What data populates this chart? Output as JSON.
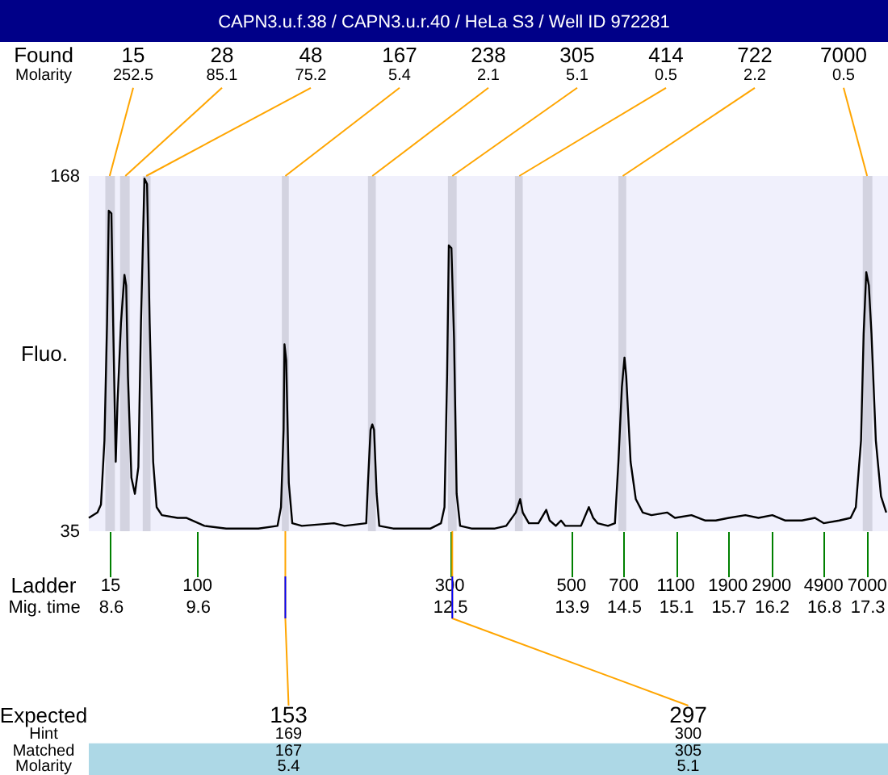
{
  "chart_data": {
    "type": "line",
    "title": "CAPN3.u.f.38 / CAPN3.u.r.40 / HeLa S3 / Well ID 972281",
    "xlabel": "Mig. time",
    "ylabel": "Fluo.",
    "xlim": [
      8.35,
      17.54
    ],
    "ylim": [
      35,
      168
    ],
    "xticks": [
      8.6,
      9.6,
      12.5,
      13.9,
      14.5,
      15.1,
      15.7,
      16.2,
      16.8,
      17.3
    ],
    "yticks": [
      35,
      168
    ],
    "color": "#000000",
    "x": [
      8.35,
      8.45,
      8.49,
      8.53,
      8.56,
      8.58,
      8.61,
      8.63,
      8.66,
      8.68,
      8.72,
      8.76,
      8.78,
      8.8,
      8.84,
      8.88,
      8.92,
      8.95,
      8.99,
      9.02,
      9.05,
      9.09,
      9.13,
      9.19,
      9.37,
      9.47,
      9.68,
      9.93,
      10.3,
      10.52,
      10.56,
      10.59,
      10.6,
      10.62,
      10.65,
      10.69,
      10.8,
      11.17,
      11.29,
      11.54,
      11.56,
      11.59,
      11.61,
      11.63,
      11.66,
      11.69,
      11.85,
      12.28,
      12.4,
      12.44,
      12.47,
      12.49,
      12.52,
      12.55,
      12.58,
      12.62,
      12.75,
      13.02,
      13.15,
      13.26,
      13.31,
      13.34,
      13.41,
      13.52,
      13.61,
      13.65,
      13.72,
      13.78,
      13.83,
      14.01,
      14.1,
      14.15,
      14.2,
      14.32,
      14.4,
      14.44,
      14.48,
      14.51,
      14.53,
      14.58,
      14.64,
      14.72,
      14.82,
      15.0,
      15.09,
      15.28,
      15.44,
      15.56,
      15.71,
      15.9,
      16.05,
      16.21,
      16.36,
      16.55,
      16.7,
      16.8,
      16.98,
      17.11,
      17.17,
      17.23,
      17.26,
      17.29,
      17.32,
      17.35,
      17.4,
      17.46,
      17.52
    ],
    "values": [
      40,
      42,
      45,
      69,
      113,
      155,
      154,
      113,
      61,
      83,
      113,
      131,
      127,
      93,
      55,
      49,
      59,
      113,
      167,
      165,
      113,
      61,
      44,
      41,
      40,
      40,
      37,
      36,
      36,
      37,
      44,
      73,
      105,
      99,
      53,
      38,
      37,
      38,
      37,
      38,
      53,
      73,
      75,
      73,
      49,
      37,
      36,
      36,
      38,
      44,
      93,
      142,
      141,
      107,
      49,
      37,
      36,
      36,
      37,
      42,
      47,
      42,
      38,
      38,
      43,
      39,
      37,
      39,
      37,
      37,
      44,
      40,
      38,
      37,
      38,
      61,
      89,
      100,
      93,
      61,
      47,
      42,
      41,
      42,
      40,
      41,
      39,
      39,
      40,
      41,
      40,
      41,
      39,
      39,
      40,
      38,
      39,
      40,
      44,
      69,
      109,
      132,
      127,
      109,
      69,
      48,
      42
    ],
    "bands": [
      {
        "axis": "x",
        "from": 8.54,
        "to": 8.65,
        "label": "15",
        "color": "#d3d3e0"
      },
      {
        "axis": "x",
        "from": 8.71,
        "to": 8.82,
        "label": "28",
        "color": "#d3d3e0"
      },
      {
        "axis": "x",
        "from": 8.97,
        "to": 9.06,
        "label": "48",
        "color": "#d3d3e0"
      },
      {
        "axis": "x",
        "from": 10.57,
        "to": 10.65,
        "label": "167",
        "color": "#d3d3e0"
      },
      {
        "axis": "x",
        "from": 11.56,
        "to": 11.65,
        "label": "238",
        "color": "#d3d3e0"
      },
      {
        "axis": "x",
        "from": 12.48,
        "to": 12.58,
        "label": "305",
        "color": "#d3d3e0"
      },
      {
        "axis": "x",
        "from": 13.25,
        "to": 13.34,
        "label": "414",
        "color": "#d3d3e0"
      },
      {
        "axis": "x",
        "from": 14.44,
        "to": 14.53,
        "label": "722",
        "color": "#d3d3e0"
      },
      {
        "axis": "x",
        "from": 17.25,
        "to": 17.36,
        "label": "7000",
        "color": "#d3d3e0"
      }
    ],
    "annotations": [
      "Found",
      "Molarity",
      "Ladder",
      "Expected",
      "Hint",
      "Matched",
      "Molarity",
      {
        "text": "252.5",
        "x": 8.59,
        "y": 168
      },
      {
        "text": "85.1",
        "x": 8.77,
        "y": 168
      },
      {
        "text": "75.2",
        "x": 9.01,
        "y": 168
      },
      {
        "text": "5.4",
        "x": 10.61,
        "y": 168
      },
      {
        "text": "2.1",
        "x": 11.61,
        "y": 168
      },
      {
        "text": "5.1",
        "x": 12.53,
        "y": 168
      },
      {
        "text": "0.5",
        "x": 13.3,
        "y": 168
      },
      {
        "text": "2.2",
        "x": 14.49,
        "y": 168
      },
      {
        "text": "0.5",
        "x": 17.3,
        "y": 168
      },
      "15",
      "100",
      "300",
      "500",
      "700",
      "1100",
      "1900",
      "2900",
      "4900",
      "7000",
      {
        "text": "153",
        "x": 10.61,
        "y": 35
      },
      "169",
      "167",
      "5.4",
      {
        "text": "297",
        "x": 12.53,
        "y": 35
      },
      "300",
      "305",
      "5.1"
    ]
  }
}
